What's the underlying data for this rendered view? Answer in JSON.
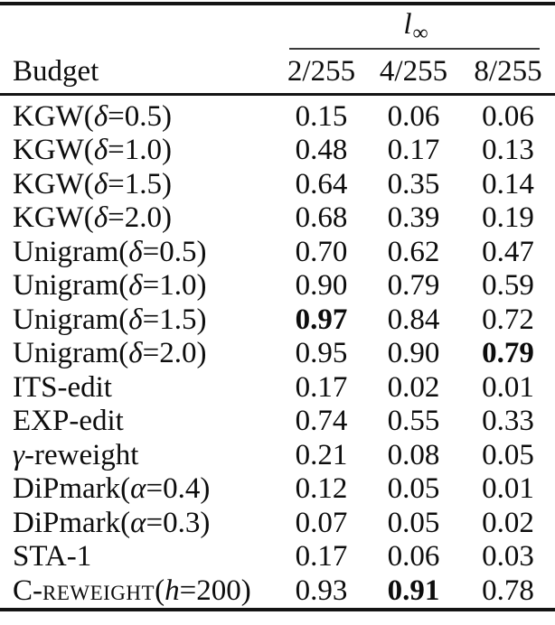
{
  "colors": {
    "background": "#ffffff",
    "text": "#0d0d0d",
    "rule_heavy": "#141414",
    "rule_light": "#3a3a3a"
  },
  "table": {
    "group_header": {
      "base": "l",
      "subscript": "∞"
    },
    "stub_header": "Budget",
    "column_headers": [
      "2/255",
      "4/255",
      "8/255"
    ],
    "rows": [
      {
        "label": [
          {
            "t": "KGW("
          },
          {
            "t": "δ",
            "i": 1
          },
          {
            "t": "=0.5)"
          }
        ],
        "values": [
          {
            "v": "0.15"
          },
          {
            "v": "0.06"
          },
          {
            "v": "0.06"
          }
        ]
      },
      {
        "label": [
          {
            "t": "KGW("
          },
          {
            "t": "δ",
            "i": 1
          },
          {
            "t": "=1.0)"
          }
        ],
        "values": [
          {
            "v": "0.48"
          },
          {
            "v": "0.17"
          },
          {
            "v": "0.13"
          }
        ]
      },
      {
        "label": [
          {
            "t": "KGW("
          },
          {
            "t": "δ",
            "i": 1
          },
          {
            "t": "=1.5)"
          }
        ],
        "values": [
          {
            "v": "0.64"
          },
          {
            "v": "0.35"
          },
          {
            "v": "0.14"
          }
        ]
      },
      {
        "label": [
          {
            "t": "KGW("
          },
          {
            "t": "δ",
            "i": 1
          },
          {
            "t": "=2.0)"
          }
        ],
        "values": [
          {
            "v": "0.68"
          },
          {
            "v": "0.39"
          },
          {
            "v": "0.19"
          }
        ]
      },
      {
        "label": [
          {
            "t": "Unigram("
          },
          {
            "t": "δ",
            "i": 1
          },
          {
            "t": "=0.5)"
          }
        ],
        "values": [
          {
            "v": "0.70"
          },
          {
            "v": "0.62"
          },
          {
            "v": "0.47"
          }
        ]
      },
      {
        "label": [
          {
            "t": "Unigram("
          },
          {
            "t": "δ",
            "i": 1
          },
          {
            "t": "=1.0)"
          }
        ],
        "values": [
          {
            "v": "0.90"
          },
          {
            "v": "0.79"
          },
          {
            "v": "0.59"
          }
        ]
      },
      {
        "label": [
          {
            "t": "Unigram("
          },
          {
            "t": "δ",
            "i": 1
          },
          {
            "t": "=1.5)"
          }
        ],
        "values": [
          {
            "v": "0.97",
            "b": 1
          },
          {
            "v": "0.84"
          },
          {
            "v": "0.72"
          }
        ]
      },
      {
        "label": [
          {
            "t": "Unigram("
          },
          {
            "t": "δ",
            "i": 1
          },
          {
            "t": "=2.0)"
          }
        ],
        "values": [
          {
            "v": "0.95"
          },
          {
            "v": "0.90"
          },
          {
            "v": "0.79",
            "b": 1
          }
        ]
      },
      {
        "label": [
          {
            "t": "ITS-edit"
          }
        ],
        "values": [
          {
            "v": "0.17"
          },
          {
            "v": "0.02"
          },
          {
            "v": "0.01"
          }
        ]
      },
      {
        "label": [
          {
            "t": "EXP-edit"
          }
        ],
        "values": [
          {
            "v": "0.74"
          },
          {
            "v": "0.55"
          },
          {
            "v": "0.33"
          }
        ]
      },
      {
        "label": [
          {
            "t": "γ",
            "i": 1
          },
          {
            "t": "-reweight"
          }
        ],
        "values": [
          {
            "v": "0.21"
          },
          {
            "v": "0.08"
          },
          {
            "v": "0.05"
          }
        ]
      },
      {
        "label": [
          {
            "t": "DiPmark("
          },
          {
            "t": "α",
            "i": 1
          },
          {
            "t": "=0.4)"
          }
        ],
        "values": [
          {
            "v": "0.12"
          },
          {
            "v": "0.05"
          },
          {
            "v": "0.01"
          }
        ]
      },
      {
        "label": [
          {
            "t": "DiPmark("
          },
          {
            "t": "α",
            "i": 1
          },
          {
            "t": "=0.3)"
          }
        ],
        "values": [
          {
            "v": "0.07"
          },
          {
            "v": "0.05"
          },
          {
            "v": "0.02"
          }
        ]
      },
      {
        "label": [
          {
            "t": "STA-1"
          }
        ],
        "values": [
          {
            "v": "0.17"
          },
          {
            "v": "0.06"
          },
          {
            "v": "0.03"
          }
        ]
      },
      {
        "label": [
          {
            "t": "C-"
          },
          {
            "t": "reweight",
            "sc": 1
          },
          {
            "t": "("
          },
          {
            "t": "h",
            "i": 1
          },
          {
            "t": "=200)"
          }
        ],
        "values": [
          {
            "v": "0.93"
          },
          {
            "v": "0.91",
            "b": 1
          },
          {
            "v": "0.78"
          }
        ]
      }
    ]
  }
}
